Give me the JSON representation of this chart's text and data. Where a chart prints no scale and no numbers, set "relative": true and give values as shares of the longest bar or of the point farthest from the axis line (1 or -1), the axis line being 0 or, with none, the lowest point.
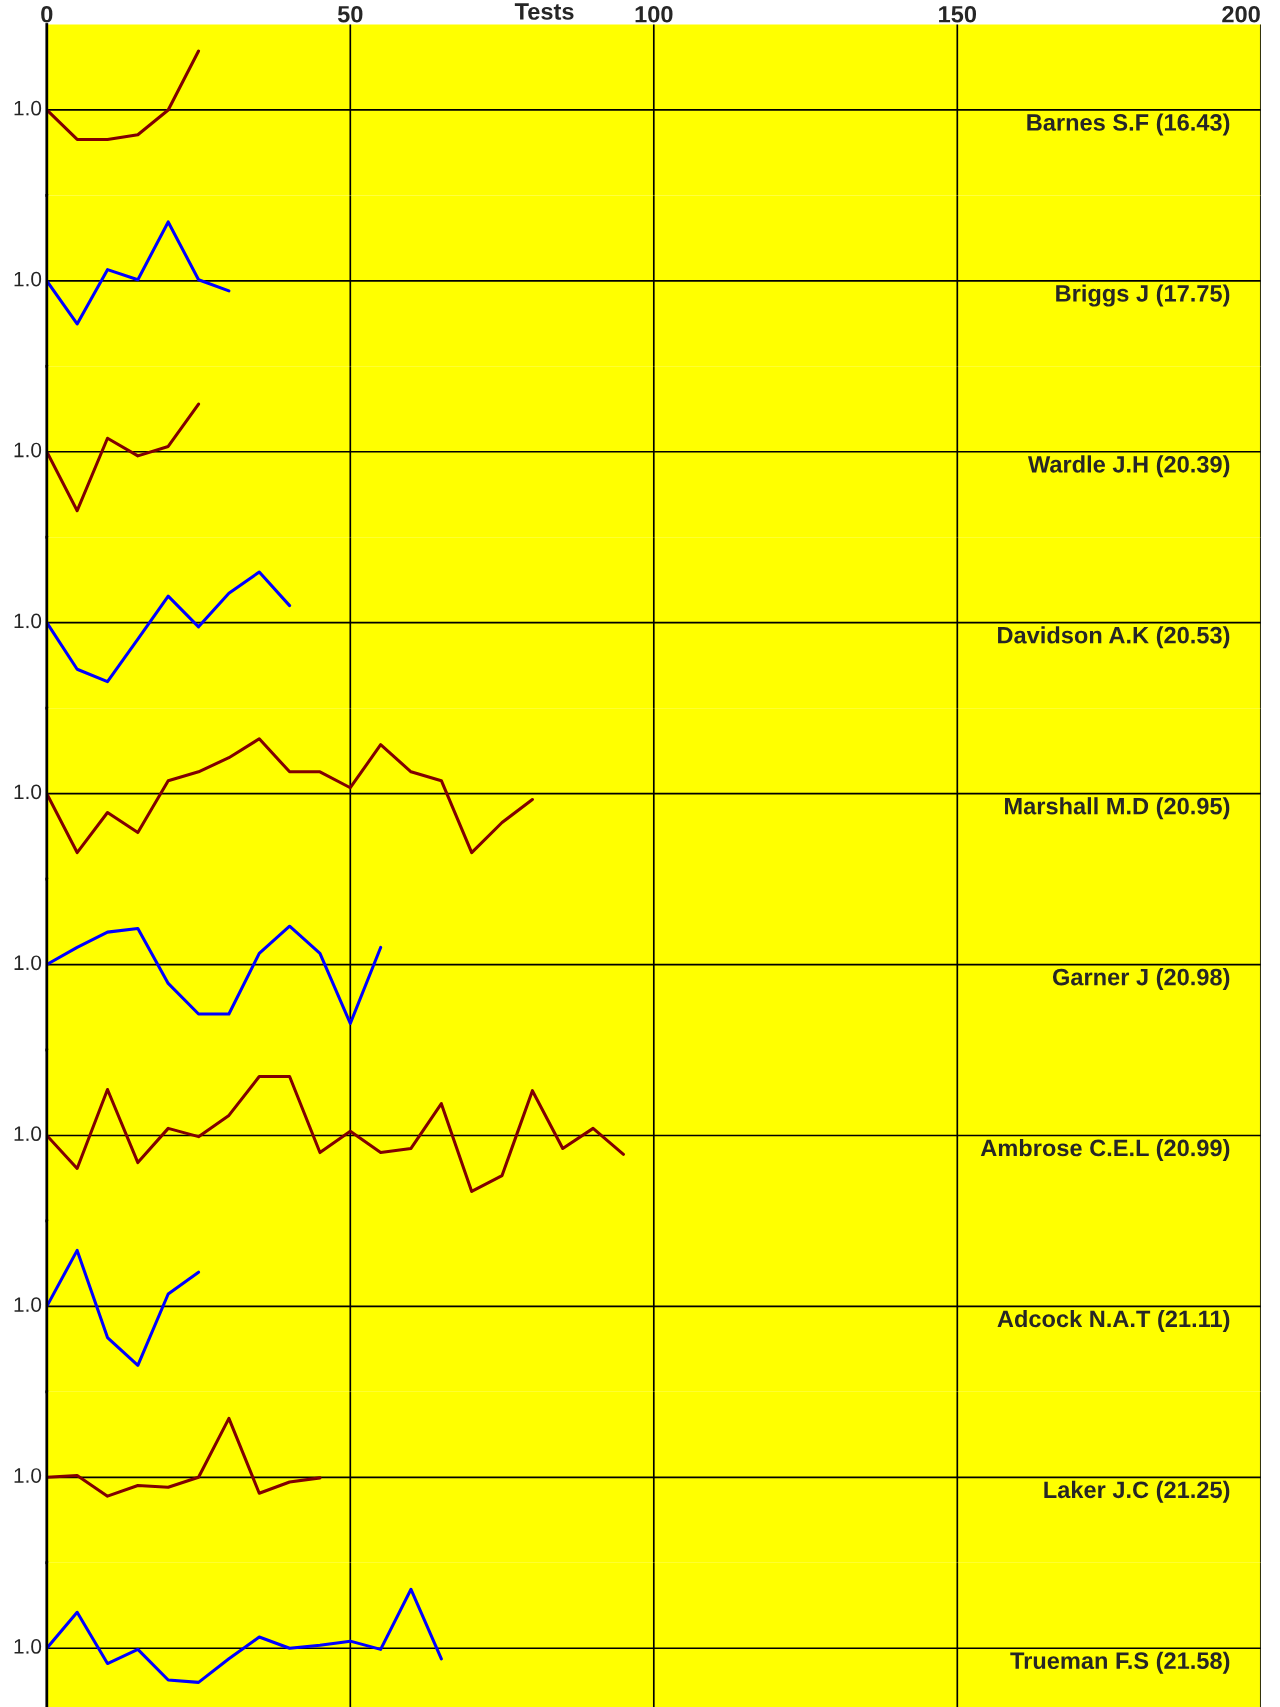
{
  "chart_data": [
    {
      "type": "line",
      "title": "Barnes S.F (16.43)",
      "xlabel": "Tests",
      "relative": true,
      "xlim": [
        0,
        200
      ],
      "xticks": [
        0,
        50,
        100,
        150,
        200
      ],
      "tick_labels": "x",
      "grid": "x",
      "ref_lines": [
        {
          "axis": "y",
          "value": 0
        }
      ],
      "annotations": [
        "1.0"
      ],
      "series": [
        {
          "color": "#800000",
          "x": [
            0,
            5,
            10,
            15,
            20,
            25
          ],
          "values": [
            0,
            -0.5,
            -0.5,
            -0.42,
            0,
            1
          ]
        }
      ]
    },
    {
      "type": "line",
      "title": "Briggs J (17.75)",
      "relative": true,
      "xlim": [
        0,
        200
      ],
      "tick_labels": false,
      "grid": "x",
      "ref_lines": [
        {
          "axis": "y",
          "value": 0
        }
      ],
      "annotations": [
        "1.0"
      ],
      "series": [
        {
          "color": "#0000ff",
          "x": [
            0,
            5,
            10,
            15,
            20,
            25,
            30
          ],
          "values": [
            0,
            -0.73,
            0.19,
            0.02,
            1,
            0.02,
            -0.17
          ]
        }
      ]
    },
    {
      "type": "line",
      "title": "Wardle J.H (20.39)",
      "relative": true,
      "xlim": [
        0,
        200
      ],
      "tick_labels": false,
      "grid": "x",
      "ref_lines": [
        {
          "axis": "y",
          "value": 0
        }
      ],
      "annotations": [
        "1.0"
      ],
      "series": [
        {
          "color": "#800000",
          "x": [
            0,
            5,
            10,
            15,
            20,
            25
          ],
          "values": [
            0,
            -1,
            0.23,
            -0.07,
            0.09,
            0.81
          ]
        }
      ]
    },
    {
      "type": "line",
      "title": "Davidson A.K (20.53)",
      "relative": true,
      "xlim": [
        0,
        200
      ],
      "tick_labels": false,
      "grid": "x",
      "ref_lines": [
        {
          "axis": "y",
          "value": 0
        }
      ],
      "annotations": [
        "1.0"
      ],
      "series": [
        {
          "color": "#0000ff",
          "x": [
            0,
            5,
            10,
            15,
            20,
            25,
            30,
            35,
            40
          ],
          "values": [
            0,
            -0.79,
            -1,
            -0.28,
            0.45,
            -0.07,
            0.5,
            0.86,
            0.29
          ]
        }
      ]
    },
    {
      "type": "line",
      "title": "Marshall M.D (20.95)",
      "relative": true,
      "xlim": [
        0,
        200
      ],
      "tick_labels": false,
      "grid": "x",
      "ref_lines": [
        {
          "axis": "y",
          "value": 0
        }
      ],
      "annotations": [
        "1.0"
      ],
      "series": [
        {
          "color": "#800000",
          "x": [
            0,
            5,
            10,
            15,
            20,
            25,
            30,
            35,
            40,
            45,
            50,
            55,
            60,
            65,
            70,
            75,
            80
          ],
          "values": [
            0,
            -1,
            -0.32,
            -0.66,
            0.22,
            0.37,
            0.61,
            0.93,
            0.37,
            0.37,
            0.1,
            0.83,
            0.37,
            0.22,
            -1,
            -0.49,
            -0.1
          ]
        }
      ]
    },
    {
      "type": "line",
      "title": "Garner J (20.98)",
      "relative": true,
      "xlim": [
        0,
        200
      ],
      "tick_labels": false,
      "grid": "x",
      "ref_lines": [
        {
          "axis": "y",
          "value": 0
        }
      ],
      "annotations": [
        "1.0"
      ],
      "series": [
        {
          "color": "#0000ff",
          "x": [
            0,
            5,
            10,
            15,
            20,
            25,
            30,
            35,
            40,
            45,
            50,
            55
          ],
          "values": [
            0,
            0.29,
            0.55,
            0.61,
            -0.32,
            -0.84,
            -0.84,
            0.19,
            0.65,
            0.19,
            -1,
            0.29
          ]
        }
      ]
    },
    {
      "type": "line",
      "title": "Ambrose C.E.L (20.99)",
      "relative": true,
      "xlim": [
        0,
        200
      ],
      "tick_labels": false,
      "grid": "x",
      "ref_lines": [
        {
          "axis": "y",
          "value": 0
        }
      ],
      "annotations": [
        "1.0"
      ],
      "series": [
        {
          "color": "#800000",
          "x": [
            0,
            5,
            10,
            15,
            20,
            25,
            30,
            35,
            40,
            45,
            50,
            55,
            60,
            65,
            70,
            75,
            80,
            85,
            90,
            95
          ],
          "values": [
            0,
            -0.56,
            0.78,
            -0.46,
            0.12,
            -0.02,
            0.34,
            1,
            1,
            -0.29,
            0.07,
            -0.29,
            -0.22,
            0.54,
            -0.95,
            -0.68,
            0.76,
            -0.22,
            0.12,
            -0.32
          ]
        }
      ]
    },
    {
      "type": "line",
      "title": "Adcock N.A.T (21.11)",
      "relative": true,
      "xlim": [
        0,
        200
      ],
      "tick_labels": false,
      "grid": "x",
      "ref_lines": [
        {
          "axis": "y",
          "value": 0
        }
      ],
      "annotations": [
        "1.0"
      ],
      "series": [
        {
          "color": "#0000ff",
          "x": [
            0,
            5,
            10,
            15,
            20,
            25
          ],
          "values": [
            0,
            0.95,
            -0.53,
            -1,
            0.21,
            0.58
          ]
        }
      ]
    },
    {
      "type": "line",
      "title": "Laker J.C (21.25)",
      "relative": true,
      "xlim": [
        0,
        200
      ],
      "tick_labels": false,
      "grid": "x",
      "ref_lines": [
        {
          "axis": "y",
          "value": 0
        }
      ],
      "annotations": [
        "1.0"
      ],
      "series": [
        {
          "color": "#800000",
          "x": [
            0,
            5,
            10,
            15,
            20,
            25,
            30,
            35,
            40,
            45
          ],
          "values": [
            0,
            0.03,
            -0.32,
            -0.14,
            -0.17,
            0,
            1,
            -0.27,
            -0.08,
            -0.01
          ]
        }
      ]
    },
    {
      "type": "line",
      "title": "Trueman F.S (21.58)",
      "relative": true,
      "xlim": [
        0,
        200
      ],
      "tick_labels": false,
      "grid": "x",
      "ref_lines": [
        {
          "axis": "y",
          "value": 0
        }
      ],
      "annotations": [
        "1.0"
      ],
      "series": [
        {
          "color": "#0000ff",
          "x": [
            0,
            5,
            10,
            15,
            20,
            25,
            30,
            35,
            40,
            45,
            50,
            55,
            60,
            65
          ],
          "values": [
            0,
            0.61,
            -0.26,
            -0.02,
            -0.54,
            -0.58,
            -0.18,
            0.19,
            0,
            0.05,
            0.12,
            -0.02,
            1,
            -0.18
          ]
        }
      ]
    }
  ]
}
